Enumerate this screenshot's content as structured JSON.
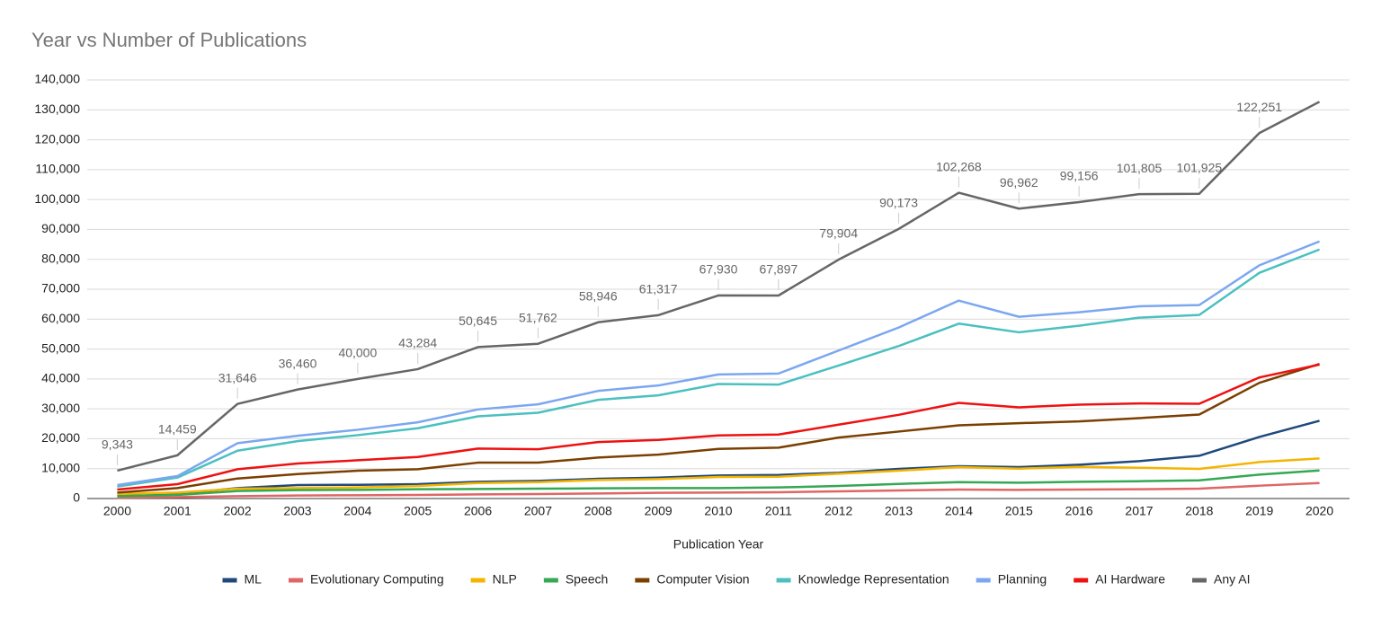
{
  "chart_data": {
    "type": "line",
    "title": "Year vs Number of Publications",
    "x_label": "Publication Year",
    "categories": [
      "2000",
      "2001",
      "2002",
      "2003",
      "2004",
      "2005",
      "2006",
      "2007",
      "2008",
      "2009",
      "2010",
      "2011",
      "2012",
      "2013",
      "2014",
      "2015",
      "2016",
      "2017",
      "2018",
      "2019",
      "2020"
    ],
    "ylim": [
      0,
      140000
    ],
    "yticks": [
      0,
      {
        "value": 10000,
        "label": "10,000"
      },
      {
        "value": 20000,
        "label": "20,000"
      },
      {
        "value": 30000,
        "label": "30,000"
      },
      {
        "value": 40000,
        "label": "40,000"
      },
      {
        "value": 50000,
        "label": "50,000"
      },
      {
        "value": 60000,
        "label": "60,000"
      },
      {
        "value": 70000,
        "label": "70,000"
      },
      {
        "value": 80000,
        "label": "80,000"
      },
      {
        "value": 90000,
        "label": "90,000"
      },
      {
        "value": 100000,
        "label": "100,000"
      },
      {
        "value": 110000,
        "label": "110,000"
      },
      {
        "value": 120000,
        "label": "120,000"
      },
      {
        "value": 130000,
        "label": "130,000"
      },
      {
        "value": 140000,
        "label": "140,000"
      }
    ],
    "grid": true,
    "legend": "bottom",
    "series": [
      {
        "name": "ML",
        "color": "#1f497d",
        "values": [
          1000,
          1500,
          3500,
          4500,
          4600,
          4800,
          5600,
          5900,
          6600,
          7000,
          7700,
          7900,
          8600,
          9900,
          10800,
          10500,
          11300,
          12500,
          14300,
          20600,
          26000
        ]
      },
      {
        "name": "Evolutionary Computing",
        "color": "#e06666",
        "values": [
          300,
          500,
          800,
          1000,
          1100,
          1200,
          1400,
          1500,
          1700,
          1900,
          2000,
          2100,
          2400,
          2700,
          3000,
          2900,
          3000,
          3100,
          3300,
          4300,
          5200
        ]
      },
      {
        "name": "NLP",
        "color": "#f4b400",
        "values": [
          1500,
          2000,
          3300,
          3500,
          3700,
          4200,
          5200,
          5500,
          6200,
          6500,
          7200,
          7300,
          8300,
          9300,
          10500,
          10000,
          10600,
          10300,
          9900,
          12200,
          13400
        ]
      },
      {
        "name": "Speech",
        "color": "#34a853",
        "values": [
          800,
          1200,
          2500,
          2800,
          2900,
          3100,
          3200,
          3300,
          3400,
          3500,
          3500,
          3700,
          4200,
          4900,
          5500,
          5300,
          5600,
          5800,
          6100,
          8000,
          9400
        ]
      },
      {
        "name": "Computer Vision",
        "color": "#7b3f00",
        "values": [
          2000,
          3500,
          6700,
          8200,
          9300,
          9800,
          12000,
          12000,
          13700,
          14700,
          16600,
          17000,
          20400,
          22400,
          24500,
          25200,
          25800,
          26900,
          28100,
          38700,
          45000
        ]
      },
      {
        "name": "Knowledge Representation",
        "color": "#4bc0c0",
        "values": [
          4000,
          7000,
          16000,
          19200,
          21200,
          23500,
          27500,
          28700,
          33000,
          34500,
          38300,
          38100,
          44500,
          51000,
          58500,
          55600,
          57800,
          60500,
          61400,
          75500,
          83300
        ]
      },
      {
        "name": "Planning",
        "color": "#7ba7f0",
        "values": [
          4500,
          7500,
          18500,
          21000,
          23000,
          25500,
          29800,
          31500,
          36000,
          37800,
          41500,
          41800,
          49500,
          57200,
          66200,
          60800,
          62300,
          64300,
          64700,
          78000,
          86000
        ]
      },
      {
        "name": "AI Hardware",
        "color": "#ee1111",
        "values": [
          3000,
          4800,
          9800,
          11700,
          12800,
          13900,
          16700,
          16500,
          18900,
          19600,
          21100,
          21400,
          24700,
          28000,
          32000,
          30500,
          31400,
          31800,
          31700,
          40500,
          44800
        ]
      },
      {
        "name": "Any AI",
        "color": "#666666",
        "values": [
          9343,
          14459,
          31646,
          36460,
          40000,
          43284,
          50645,
          51762,
          58946,
          61317,
          67930,
          67897,
          79904,
          90173,
          102268,
          96962,
          99156,
          101805,
          101925,
          122251,
          132700
        ],
        "value_labels": [
          "9,343",
          "14,459",
          "31,646",
          "36,460",
          "40,000",
          "43,284",
          "50,645",
          "51,762",
          "58,946",
          "61,317",
          "67,930",
          "67,897",
          "79,904",
          "90,173",
          "102,268",
          "96,962",
          "99,156",
          "101,805",
          "101,925",
          "122,251",
          null
        ]
      }
    ]
  }
}
